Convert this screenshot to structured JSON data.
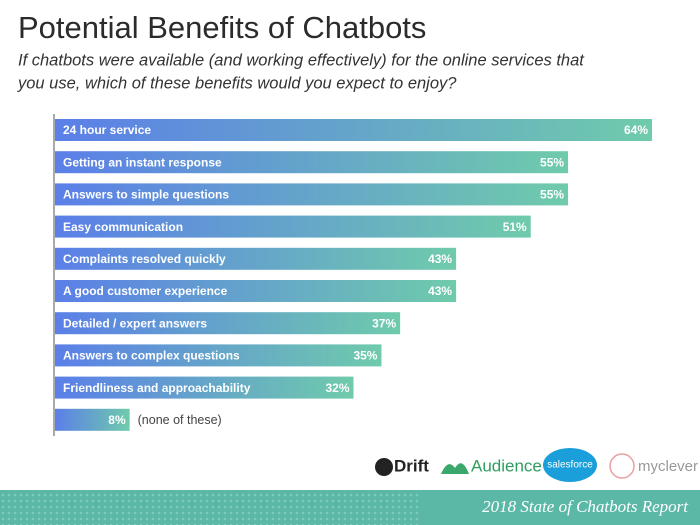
{
  "chart_data": {
    "type": "bar",
    "orientation": "horizontal",
    "title": "Potential Benefits of Chatbots",
    "subtitle": [
      "If chatbots were available (and working effectively) for the online services that",
      "you use, which of these benefits would you expect to enjoy?"
    ],
    "categories": [
      "24 hour service",
      "Getting an instant response",
      "Answers to simple questions",
      "Easy communication",
      "Complaints resolved quickly",
      "A good customer experience",
      "Detailed / expert answers",
      "Answers to complex questions",
      "Friendliness and approachability",
      "(none of these)"
    ],
    "values": [
      64,
      55,
      55,
      51,
      43,
      43,
      37,
      35,
      32,
      8
    ],
    "value_labels": [
      "64%",
      "55%",
      "55%",
      "51%",
      "43%",
      "43%",
      "37%",
      "35%",
      "32%",
      "8%"
    ],
    "gradient": [
      "#5b7fe8",
      "#6fcbab"
    ]
  },
  "logos": [
    "Drift",
    "Audience",
    "salesforce",
    "myclever"
  ],
  "footer": "2018 State of Chatbots Report"
}
